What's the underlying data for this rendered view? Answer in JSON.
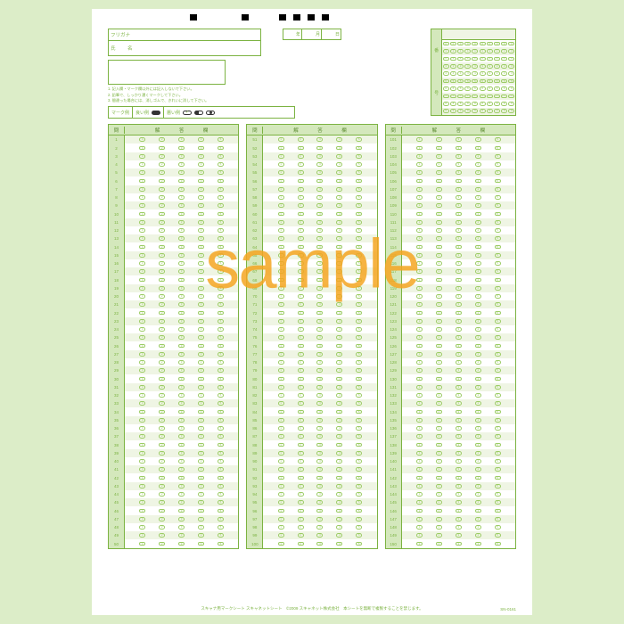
{
  "colors": {
    "page_bg": "#dcedc8",
    "sheet_bg": "#ffffff",
    "line": "#7cb342",
    "tint": "#eff5e4",
    "header_tint": "#d4e8bc",
    "bubble": "#9ccc65",
    "watermark": "#f5a623"
  },
  "timing_marks_x": [
    110,
    168,
    210,
    226,
    242,
    258
  ],
  "header": {
    "furigana": "フリガナ",
    "name": "氏　名",
    "date_y": "年",
    "date_m": "月",
    "date_d": "日"
  },
  "number_block": {
    "label_top": "番",
    "label_bottom": "号",
    "digit_columns": 10,
    "digit_rows": 10
  },
  "instructions": [
    "1. 記入欄・マーク欄以外には記入しないで下さい。",
    "2. 鉛筆で、しっかり濃くマークして下さい。",
    "3. 間違った場合には、消しゴムで、きれいに消して下さい。"
  ],
  "mark_example": {
    "title": "マーク例",
    "good": "良い例",
    "bad": "悪い例"
  },
  "answer_columns": {
    "header_q": "問",
    "header_a": "解　答　欄",
    "choices": 5,
    "ranges": [
      [
        1,
        50
      ],
      [
        51,
        100
      ],
      [
        101,
        150
      ]
    ]
  },
  "watermark": "sample",
  "footer": {
    "left": "スキャナ用マークシート スキャネットシート",
    "center": "©2009 スキャネット株式会社　本シートを無断で複製することを禁じます。",
    "code": "SN-0161"
  }
}
